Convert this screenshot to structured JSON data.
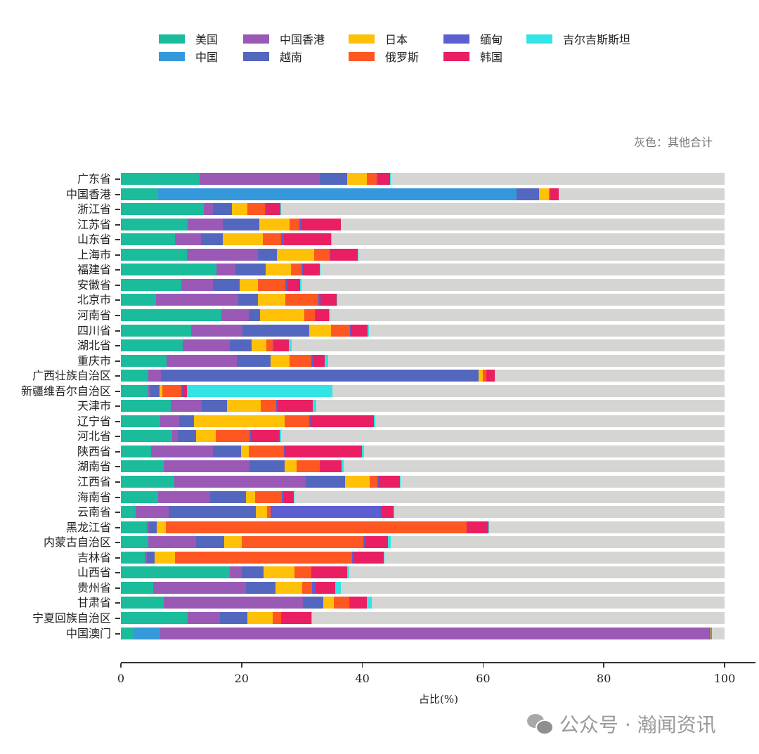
{
  "chart_data": {
    "type": "bar",
    "orientation": "horizontal-stacked",
    "title": "",
    "xlabel": "占比(%)",
    "ylabel": "",
    "xlim": [
      0,
      100
    ],
    "xticks": [
      0,
      20,
      40,
      60,
      80,
      100
    ],
    "annotation": "灰色：其他合计",
    "legend": [
      "美国",
      "中国",
      "中国香港",
      "越南",
      "日本",
      "俄罗斯",
      "缅甸",
      "韩国",
      "吉尔吉斯斯坦"
    ],
    "legend_position": "top",
    "colors": {
      "美国": "#1abc9c",
      "中国": "#3498db",
      "中国香港": "#9b59b6",
      "越南": "#5467bf",
      "日本": "#ffc107",
      "俄罗斯": "#ff5722",
      "缅甸": "#5b5fcf",
      "韩国": "#e91e63",
      "吉尔吉斯斯坦": "#33e4e4",
      "其他": "#d5d5d3"
    },
    "categories": [
      "广东省",
      "中国香港",
      "浙江省",
      "江苏省",
      "山东省",
      "上海市",
      "福建省",
      "安徽省",
      "北京市",
      "河南省",
      "四川省",
      "湖北省",
      "重庆市",
      "广西壮族自治区",
      "新疆维吾尔自治区",
      "天津市",
      "辽宁省",
      "河北省",
      "陕西省",
      "湖南省",
      "江西省",
      "海南省",
      "云南省",
      "黑龙江省",
      "内蒙古自治区",
      "吉林省",
      "山西省",
      "贵州省",
      "甘肃省",
      "宁夏回族自治区",
      "中国澳门"
    ],
    "series": [
      {
        "name": "美国",
        "values": [
          13.0,
          6.2,
          13.7,
          11.1,
          9.0,
          10.9,
          15.8,
          10.0,
          5.8,
          16.7,
          11.6,
          10.3,
          7.6,
          4.5,
          4.5,
          8.3,
          6.5,
          8.5,
          5.0,
          7.1,
          8.8,
          6.2,
          2.4,
          4.3,
          4.5,
          4.0,
          18.1,
          5.3,
          7.1,
          11.1,
          2.1
        ]
      },
      {
        "name": "中国",
        "values": [
          0,
          59.3,
          0,
          0,
          0,
          0,
          0,
          0,
          0,
          0,
          0,
          0,
          0,
          0,
          0,
          0,
          0,
          0,
          0,
          0,
          0,
          0,
          0,
          0,
          0,
          0,
          0,
          0,
          0,
          0,
          4.4
        ]
      },
      {
        "name": "中国香港",
        "values": [
          19.9,
          0,
          1.5,
          5.8,
          4.3,
          11.8,
          3.2,
          5.3,
          13.6,
          4.5,
          8.5,
          7.7,
          11.6,
          2.1,
          0.4,
          5.1,
          3.2,
          0.9,
          10.3,
          14.2,
          21.8,
          8.6,
          5.5,
          0.4,
          7.9,
          0.3,
          1.9,
          15.4,
          23.1,
          5.3,
          90.9
        ]
      },
      {
        "name": "越南",
        "values": [
          4.6,
          3.8,
          3.2,
          6.0,
          3.6,
          3.1,
          5.0,
          4.4,
          3.3,
          1.8,
          11.1,
          3.7,
          5.6,
          52.6,
          1.5,
          4.2,
          2.4,
          3.1,
          4.6,
          5.8,
          6.5,
          5.9,
          14.4,
          1.2,
          4.7,
          1.3,
          3.6,
          4.9,
          3.3,
          4.6,
          0.3
        ]
      },
      {
        "name": "日本",
        "values": [
          3.3,
          1.6,
          2.6,
          5.1,
          6.6,
          6.2,
          4.2,
          3.0,
          4.6,
          7.4,
          3.6,
          2.4,
          3.1,
          0.7,
          0.5,
          5.6,
          15.0,
          3.2,
          1.3,
          2.0,
          4.1,
          1.5,
          1.9,
          1.5,
          2.9,
          3.4,
          5.2,
          4.4,
          1.8,
          4.2,
          0.1
        ]
      },
      {
        "name": "俄罗斯",
        "values": [
          1.6,
          0.2,
          2.9,
          1.6,
          3.0,
          2.6,
          1.7,
          4.6,
          5.4,
          1.7,
          3.2,
          1.1,
          3.6,
          0.6,
          3.1,
          2.5,
          4.1,
          5.6,
          5.8,
          3.8,
          1.3,
          4.5,
          0.6,
          49.9,
          20.2,
          29.3,
          2.7,
          1.7,
          2.5,
          1.3,
          0.1
        ]
      },
      {
        "name": "缅甸",
        "values": [
          0.2,
          0,
          0.2,
          0.3,
          0.5,
          0.1,
          0.3,
          0.3,
          0.4,
          0.2,
          0.1,
          0.2,
          0.4,
          0.1,
          0.2,
          0.3,
          0.2,
          0.3,
          0.1,
          0.1,
          0.2,
          0.3,
          18.3,
          0,
          0.3,
          0.2,
          0.1,
          0.6,
          0.1,
          0.2,
          0
        ]
      },
      {
        "name": "韩国",
        "values": [
          2.0,
          1.4,
          2.3,
          6.5,
          7.8,
          4.5,
          2.8,
          2.1,
          2.7,
          2.2,
          2.8,
          2.4,
          1.9,
          1.3,
          0.7,
          5.8,
          10.5,
          4.7,
          12.8,
          3.6,
          3.5,
          1.7,
          2.1,
          3.6,
          3.8,
          5.0,
          5.9,
          3.2,
          2.8,
          4.8,
          0
        ]
      },
      {
        "name": "吉尔吉斯斯坦",
        "values": [
          0.1,
          0,
          0.2,
          0.1,
          0.1,
          0.1,
          0.1,
          0.2,
          0.1,
          0.2,
          0.2,
          0.5,
          0.5,
          0,
          24.2,
          0.6,
          0.2,
          0.3,
          0.4,
          0.3,
          0.1,
          0.1,
          0.1,
          0.1,
          0.4,
          0.2,
          0.4,
          0.9,
          0.9,
          0.2,
          0
        ]
      }
    ],
    "other_series": {
      "name": "其他合计",
      "color": "#d5d5d3",
      "note": "remainder to 100"
    }
  },
  "legend": {
    "items": [
      {
        "label": "美国",
        "color": "#1abc9c"
      },
      {
        "label": "中国",
        "color": "#3498db"
      },
      {
        "label": "中国香港",
        "color": "#9b59b6"
      },
      {
        "label": "越南",
        "color": "#5467bf"
      },
      {
        "label": "日本",
        "color": "#ffc107"
      },
      {
        "label": "俄罗斯",
        "color": "#ff5722"
      },
      {
        "label": "缅甸",
        "color": "#5b5fcf"
      },
      {
        "label": "韩国",
        "color": "#e91e63"
      },
      {
        "label": "吉尔吉斯斯坦",
        "color": "#33e4e4"
      }
    ]
  },
  "note": "灰色：其他合计",
  "xaxis": {
    "title": "占比(%)",
    "ticks": [
      "0",
      "20",
      "40",
      "60",
      "80",
      "100"
    ]
  },
  "watermark": {
    "text": "公众号 · 瀚闻资讯",
    "icon": "wechat-icon"
  }
}
